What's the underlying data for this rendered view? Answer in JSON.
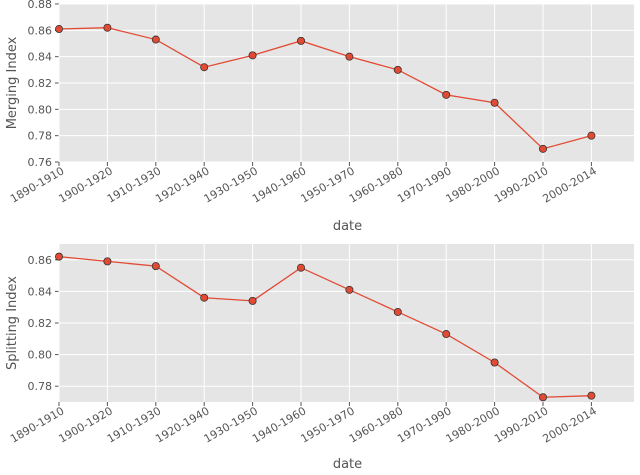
{
  "colors": {
    "plot_background": "#e5e5e5",
    "grid": "#ffffff",
    "line": "#e24a33",
    "marker_edge": "#333333",
    "text": "#555555"
  },
  "chart_data": [
    {
      "type": "line",
      "xlabel": "date",
      "ylabel": "Merging Index",
      "categories": [
        "1890-1910",
        "1900-1920",
        "1910-1930",
        "1920-1940",
        "1930-1950",
        "1940-1960",
        "1950-1970",
        "1960-1980",
        "1970-1990",
        "1980-2000",
        "1990-2010",
        "2000-2014"
      ],
      "values": [
        0.861,
        0.862,
        0.853,
        0.832,
        0.841,
        0.852,
        0.84,
        0.83,
        0.811,
        0.805,
        0.77,
        0.78
      ],
      "ylim": [
        0.76,
        0.88
      ],
      "yticks": [
        0.76,
        0.78,
        0.8,
        0.82,
        0.84,
        0.86,
        0.88
      ],
      "ytick_labels": [
        "0.76",
        "0.78",
        "0.80",
        "0.82",
        "0.84",
        "0.86",
        "0.88"
      ],
      "grid": true
    },
    {
      "type": "line",
      "xlabel": "date",
      "ylabel": "Splitting Index",
      "categories": [
        "1890-1910",
        "1900-1920",
        "1910-1930",
        "1920-1940",
        "1930-1950",
        "1940-1960",
        "1950-1970",
        "1960-1980",
        "1970-1990",
        "1980-2000",
        "1990-2010",
        "2000-2014"
      ],
      "values": [
        0.862,
        0.859,
        0.856,
        0.836,
        0.834,
        0.855,
        0.841,
        0.827,
        0.813,
        0.795,
        0.773,
        0.774
      ],
      "ylim": [
        0.77,
        0.87
      ],
      "yticks": [
        0.78,
        0.8,
        0.82,
        0.84,
        0.86
      ],
      "ytick_labels": [
        "0.78",
        "0.80",
        "0.82",
        "0.84",
        "0.86"
      ],
      "grid": true
    }
  ]
}
